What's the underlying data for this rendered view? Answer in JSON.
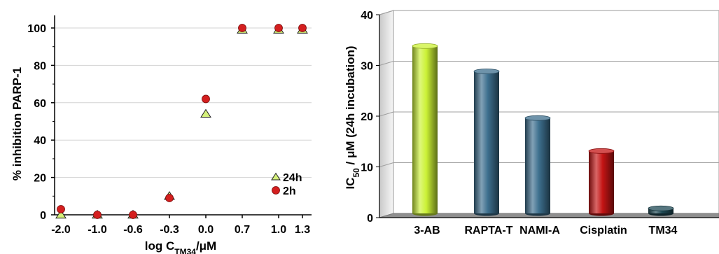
{
  "chart_data": [
    {
      "type": "scatter",
      "title": "",
      "xlabel": "log C_TM34/μM",
      "xlabel_parts": {
        "main": "log C",
        "sub": "TM34",
        "suffix": "/μM"
      },
      "ylabel": "% inhibition PARP-1",
      "ylim": [
        0,
        100
      ],
      "yticks": [
        "0",
        "20",
        "40",
        "60",
        "80",
        "100"
      ],
      "x_ticklabels": [
        "-2.0",
        "-1.0",
        "-0.6",
        "-0.3",
        "0.0",
        "0.7",
        "1.0",
        "1.3"
      ],
      "grid": "horizontal",
      "legend_position": "bottom-right",
      "series": [
        {
          "name": "24h",
          "marker": "triangle",
          "color": "#d4f07a",
          "values": [
            0,
            0,
            0,
            10,
            54,
            99,
            99,
            99
          ]
        },
        {
          "name": "2h",
          "marker": "circle",
          "color": "#d41f1f",
          "values": [
            3,
            0,
            0,
            9,
            62,
            100,
            100,
            100
          ]
        }
      ]
    },
    {
      "type": "bar",
      "title": "",
      "xlabel": "",
      "ylabel": "IC_50 / μM (24h incubation)",
      "ylabel_parts": {
        "main": "IC",
        "sub": "50",
        "suffix": " / μM (24h incubation)"
      },
      "ylim": [
        0,
        40
      ],
      "yticks": [
        "0",
        "10",
        "20",
        "30",
        "40"
      ],
      "categories": [
        "3-AB",
        "RAPTA-T",
        "NAMI-A",
        "Cisplatin",
        "TM34"
      ],
      "values": [
        33,
        28,
        18.8,
        12.3,
        1
      ],
      "colors": [
        "#ccf236",
        "#3d6f8e",
        "#3d6f8e",
        "#c41414",
        "#1f4a55"
      ],
      "grid": "horizontal"
    }
  ]
}
